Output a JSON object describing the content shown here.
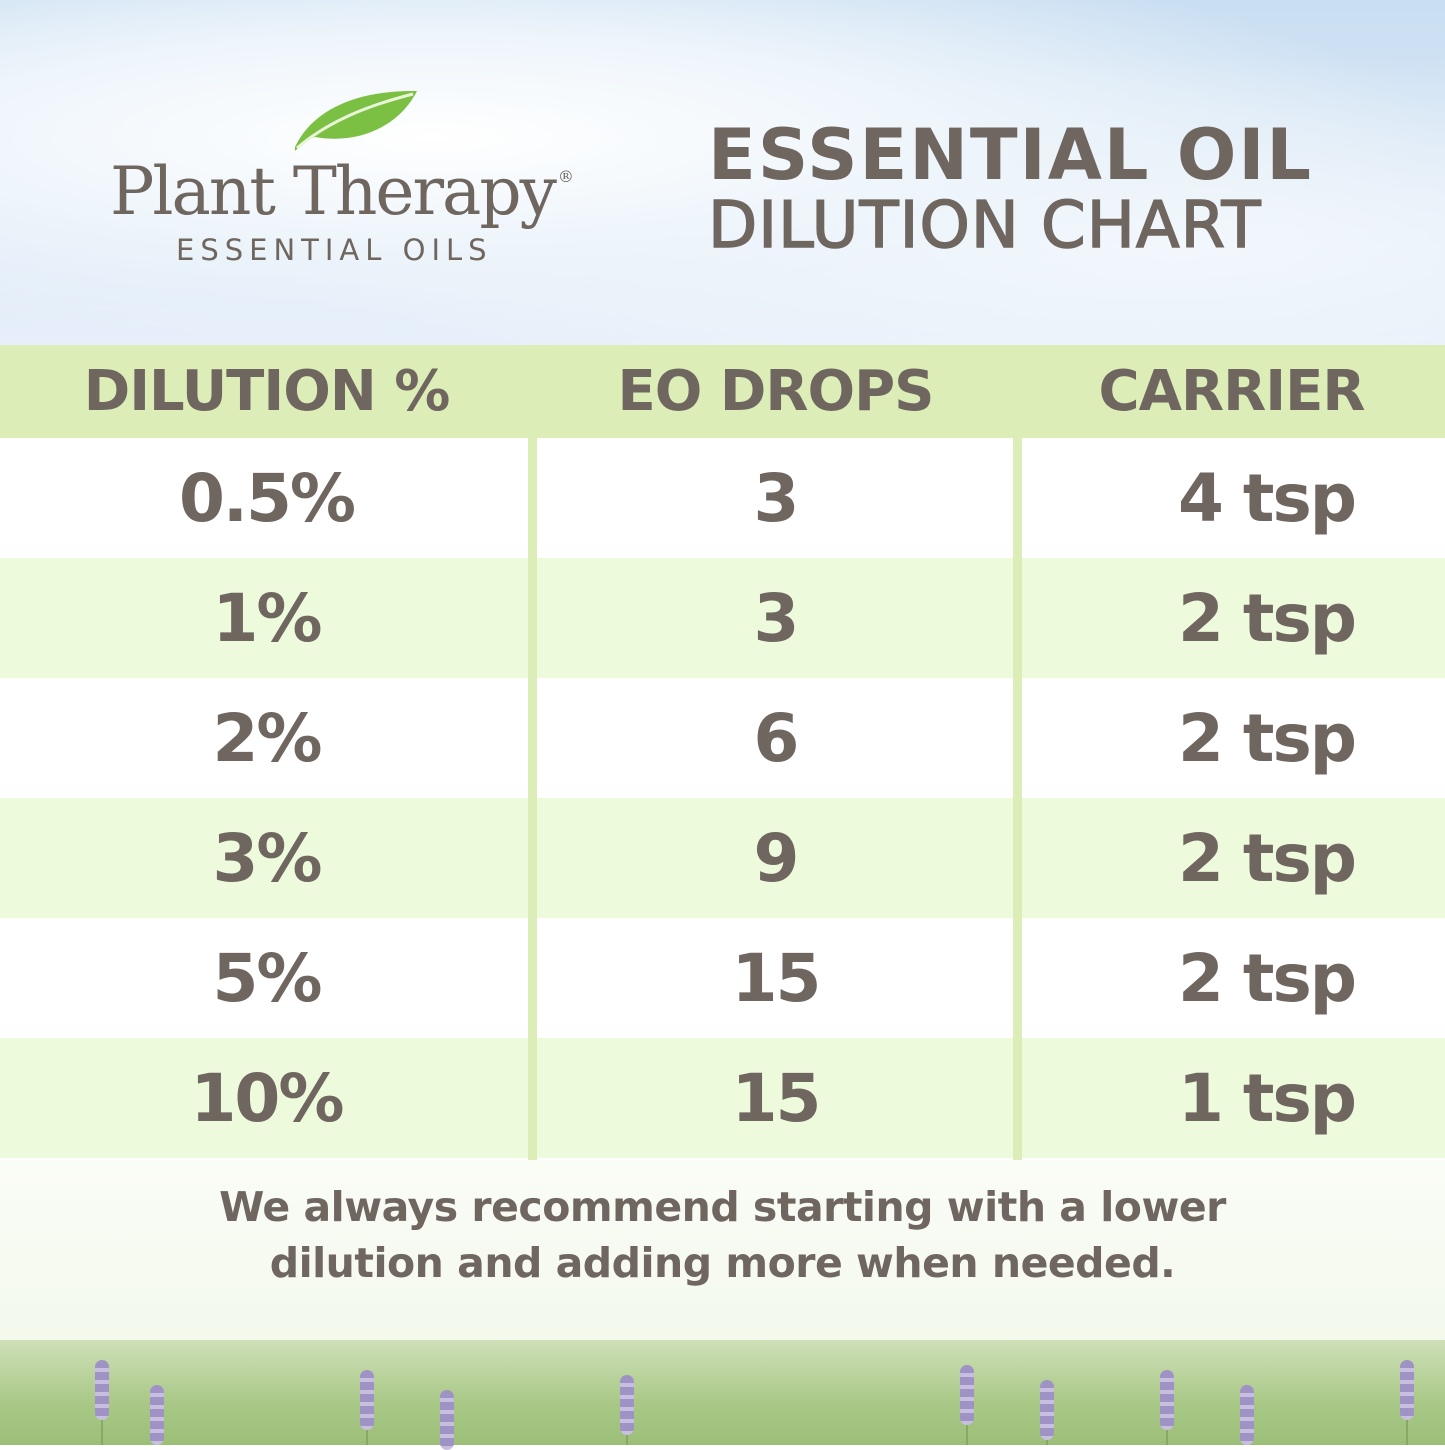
{
  "logo": {
    "brand": "Plant Therapy",
    "registered": "®",
    "subtitle": "ESSENTIAL OILS",
    "icon": "leaf-icon",
    "leaf_color": "#7cc043"
  },
  "title": {
    "line1": "ESSENTIAL OIL",
    "line2": "DILUTION CHART"
  },
  "table": {
    "headers": [
      "DILUTION %",
      "EO DROPS",
      "CARRIER"
    ],
    "rows": [
      [
        "0.5%",
        "3",
        "4 tsp"
      ],
      [
        "1%",
        "3",
        "2 tsp"
      ],
      [
        "2%",
        "6",
        "2 tsp"
      ],
      [
        "3%",
        "9",
        "2 tsp"
      ],
      [
        "5%",
        "15",
        "2 tsp"
      ],
      [
        "10%",
        "15",
        "1 tsp"
      ]
    ]
  },
  "note": {
    "line1": "We always recommend starting with a lower",
    "line2": "dilution and adding more when needed."
  },
  "colors": {
    "text": "#6f6660",
    "header_bg": "#dcedb8",
    "alt_row_bg": "#eefadc"
  }
}
